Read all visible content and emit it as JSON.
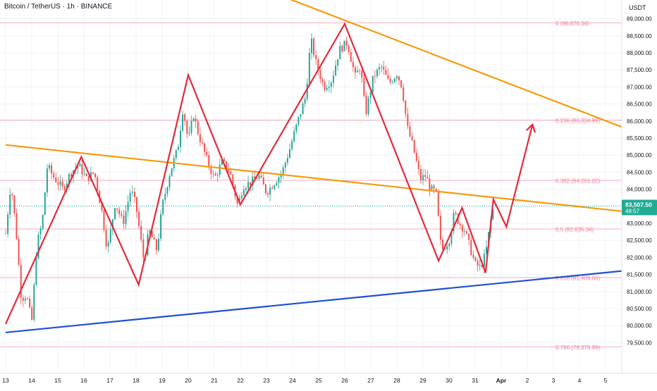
{
  "header": {
    "title": "Bitcoin / TetherUS · 1h · BINANCE",
    "currency": "USDT"
  },
  "price_tag": {
    "price": "83,507.50",
    "countdown": "48:57"
  },
  "colors": {
    "up": "#26a69a",
    "down": "#ef5350",
    "zigzag": "#e5293a",
    "trendline": "#f59b0d",
    "support": "#1f4fd6",
    "fib": "#f08098",
    "grid": "#f0f3fa",
    "tag_bg": "#22ab94"
  },
  "chart_data": {
    "type": "candlestick",
    "symbol": "BTCUSDT",
    "timeframe": "1h",
    "x_ticks": [
      "13",
      "14",
      "15",
      "16",
      "17",
      "18",
      "19",
      "20",
      "21",
      "22",
      "23",
      "24",
      "25",
      "26",
      "27",
      "28",
      "29",
      "30",
      "31",
      "Apr",
      "2",
      "3",
      "4",
      "5"
    ],
    "y_ticks": [
      "89,000.00",
      "88,500.00",
      "88,000.00",
      "87,500.00",
      "87,000.00",
      "86,500.00",
      "86,000.00",
      "85,500.00",
      "85,000.00",
      "84,500.00",
      "84,000.00",
      "83,500.00",
      "83,000.00",
      "82,500.00",
      "82,000.00",
      "81,500.00",
      "81,000.00",
      "80,500.00",
      "80,000.00",
      "79,500.00"
    ],
    "ylim": [
      78600,
      89550
    ],
    "x_range": [
      13.0,
      5.9
    ],
    "last_price": 83507.5,
    "fib_levels": [
      {
        "label": "0 (88,876.34)",
        "value": 88876.34
      },
      {
        "label": "0.236 (86,024.99)",
        "value": 86024.99
      },
      {
        "label": "0.382 (84,261.02)",
        "value": 84261.02
      },
      {
        "label": "0.5 (82,835.34)",
        "value": 82835.34
      },
      {
        "label": "0.618 (81,409.66)",
        "value": 81409.66
      },
      {
        "label": "0.786 (79,379.89)",
        "value": 79379.89
      }
    ],
    "trendlines": [
      {
        "name": "upper-resistance",
        "points": [
          [
            23.3,
            89750
          ],
          [
            5.9,
            85450
          ]
        ]
      },
      {
        "name": "middle-trendline",
        "points": [
          [
            13.0,
            85300
          ],
          [
            5.9,
            83250
          ]
        ]
      },
      {
        "name": "lower-support",
        "points": [
          [
            13.0,
            79800
          ],
          [
            5.9,
            81700
          ]
        ]
      }
    ],
    "zigzag": [
      [
        13.0,
        80050
      ],
      [
        15.9,
        84950
      ],
      [
        18.1,
        81200
      ],
      [
        20.0,
        87350
      ],
      [
        22.0,
        83550
      ],
      [
        26.0,
        88850
      ],
      [
        29.6,
        81900
      ],
      [
        30.5,
        83450
      ],
      [
        31.4,
        81550
      ],
      [
        31.7,
        83700
      ],
      [
        32.2,
        82900
      ],
      [
        33.2,
        85900
      ]
    ],
    "candle_anchors": [
      [
        13.0,
        82700
      ],
      [
        13.2,
        84200
      ],
      [
        13.4,
        82800
      ],
      [
        13.6,
        80800
      ],
      [
        13.8,
        80900
      ],
      [
        14.0,
        80100
      ],
      [
        14.2,
        82400
      ],
      [
        14.4,
        83000
      ],
      [
        14.6,
        84700
      ],
      [
        14.8,
        84400
      ],
      [
        15.2,
        84000
      ],
      [
        15.5,
        84500
      ],
      [
        15.8,
        84700
      ],
      [
        16.1,
        84300
      ],
      [
        16.4,
        84500
      ],
      [
        16.7,
        83300
      ],
      [
        16.9,
        82200
      ],
      [
        17.2,
        83600
      ],
      [
        17.5,
        83000
      ],
      [
        17.8,
        84000
      ],
      [
        18.0,
        83500
      ],
      [
        18.3,
        81900
      ],
      [
        18.5,
        82800
      ],
      [
        18.8,
        82200
      ],
      [
        19.0,
        83500
      ],
      [
        19.3,
        84500
      ],
      [
        19.6,
        85200
      ],
      [
        19.8,
        86400
      ],
      [
        20.0,
        85400
      ],
      [
        20.2,
        86200
      ],
      [
        20.4,
        85600
      ],
      [
        20.7,
        84900
      ],
      [
        21.0,
        84300
      ],
      [
        21.3,
        84800
      ],
      [
        21.6,
        84500
      ],
      [
        21.9,
        83500
      ],
      [
        22.1,
        84100
      ],
      [
        22.4,
        84200
      ],
      [
        22.7,
        84400
      ],
      [
        23.0,
        83900
      ],
      [
        23.3,
        84200
      ],
      [
        23.6,
        84500
      ],
      [
        23.9,
        85200
      ],
      [
        24.2,
        86000
      ],
      [
        24.5,
        86700
      ],
      [
        24.7,
        88400
      ],
      [
        24.9,
        87700
      ],
      [
        25.2,
        87000
      ],
      [
        25.5,
        87200
      ],
      [
        25.8,
        88100
      ],
      [
        26.1,
        88300
      ],
      [
        26.4,
        87300
      ],
      [
        26.6,
        87600
      ],
      [
        26.8,
        86200
      ],
      [
        27.1,
        87300
      ],
      [
        27.4,
        87600
      ],
      [
        27.7,
        87100
      ],
      [
        28.0,
        87400
      ],
      [
        28.2,
        87000
      ],
      [
        28.4,
        85800
      ],
      [
        28.6,
        85300
      ],
      [
        28.9,
        84300
      ],
      [
        29.1,
        84400
      ],
      [
        29.3,
        84000
      ],
      [
        29.5,
        83900
      ],
      [
        29.7,
        82200
      ],
      [
        30.0,
        82500
      ],
      [
        30.2,
        83300
      ],
      [
        30.4,
        83000
      ],
      [
        30.6,
        82800
      ],
      [
        30.8,
        82300
      ],
      [
        31.0,
        81800
      ],
      [
        31.2,
        81700
      ],
      [
        31.4,
        82100
      ],
      [
        31.6,
        83100
      ],
      [
        31.75,
        83600
      ]
    ]
  }
}
